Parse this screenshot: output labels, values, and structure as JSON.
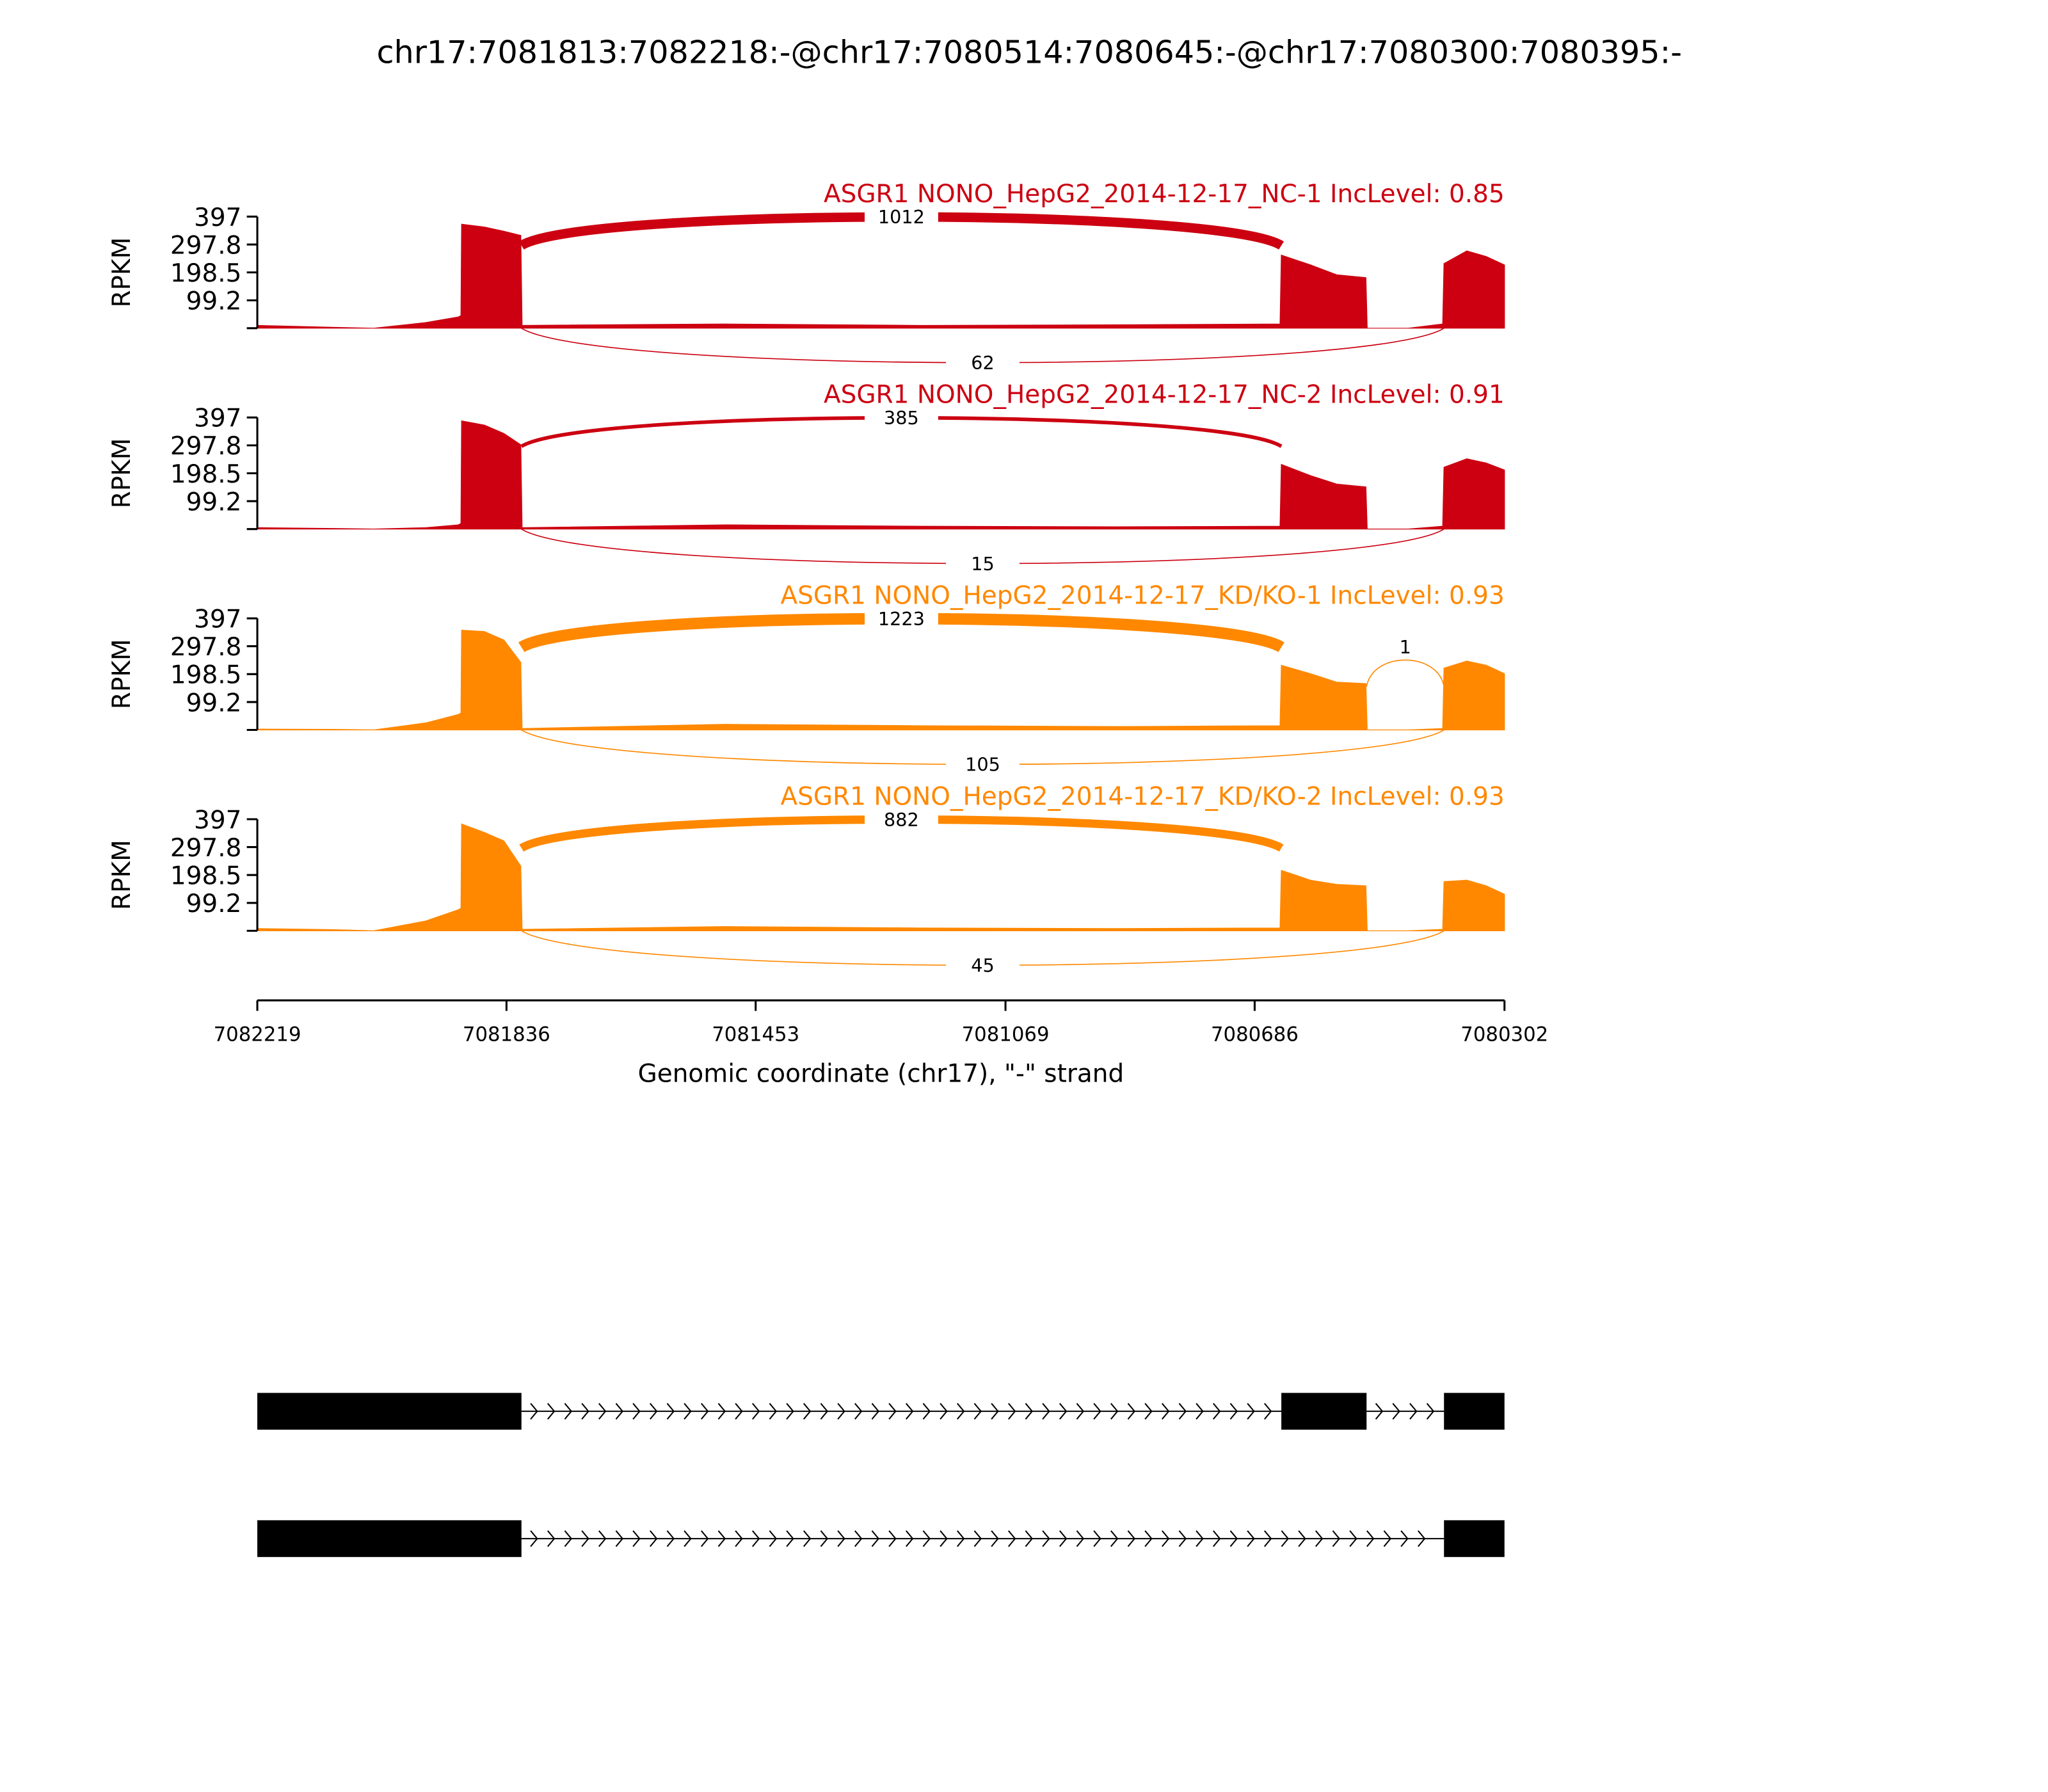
{
  "title": "chr17:7081813:7082218:-@chr17:7080514:7080645:-@chr17:7080300:7080395:-",
  "x_axis": {
    "label": "Genomic coordinate (chr17), \"-\" strand",
    "xlim": [
      7082219,
      7080302
    ],
    "xticks": [
      7082219,
      7081836,
      7081453,
      7081069,
      7080686,
      7080302
    ]
  },
  "coverage_x": [
    7082219,
    7082100,
    7082040,
    7081960,
    7081910,
    7081906,
    7081905,
    7081870,
    7081840,
    7081814,
    7081812,
    7081500,
    7081200,
    7080900,
    7080647,
    7080645,
    7080600,
    7080560,
    7080515,
    7080513,
    7080450,
    7080397,
    7080395,
    7080360,
    7080330,
    7080302
  ],
  "chart_data": [
    {
      "type": "sashimi",
      "label": "ASGR1 NONO_HepG2_2014-12-17_NC-1 IncLevel: 0.85",
      "color": "#cc0011",
      "ylabel": "RPKM",
      "ylim": [
        0,
        397
      ],
      "yticks": [
        99.2,
        198.5,
        297.8,
        397
      ],
      "values": [
        10,
        3,
        0,
        20,
        40,
        45,
        370,
        360,
        345,
        330,
        10,
        15,
        10,
        12,
        15,
        260,
        225,
        190,
        180,
        0,
        0,
        15,
        230,
        275,
        255,
        225
      ],
      "junctions": [
        {
          "start": 7081813,
          "end": 7080645,
          "count": 1012
        },
        {
          "start": 7081813,
          "end": 7080395,
          "count": 62
        }
      ]
    },
    {
      "type": "sashimi",
      "label": "ASGR1 NONO_HepG2_2014-12-17_NC-2 IncLevel: 0.91",
      "color": "#cc0011",
      "ylabel": "RPKM",
      "ylim": [
        0,
        397
      ],
      "yticks": [
        99.2,
        198.5,
        297.8,
        397
      ],
      "values": [
        5,
        2,
        0,
        5,
        15,
        20,
        385,
        370,
        340,
        300,
        5,
        15,
        10,
        8,
        10,
        230,
        190,
        160,
        150,
        0,
        0,
        10,
        220,
        250,
        235,
        210
      ],
      "junctions": [
        {
          "start": 7081813,
          "end": 7080645,
          "count": 385
        },
        {
          "start": 7081813,
          "end": 7080395,
          "count": 15
        }
      ]
    },
    {
      "type": "sashimi",
      "label": "ASGR1 NONO_HepG2_2014-12-17_KD/KO-1 IncLevel: 0.93",
      "color": "#ff8800",
      "ylabel": "RPKM",
      "ylim": [
        0,
        397
      ],
      "yticks": [
        99.2,
        198.5,
        297.8,
        397
      ],
      "values": [
        3,
        2,
        0,
        25,
        55,
        60,
        355,
        350,
        320,
        240,
        5,
        20,
        15,
        12,
        15,
        230,
        200,
        170,
        165,
        0,
        0,
        5,
        220,
        245,
        230,
        200
      ],
      "junctions": [
        {
          "start": 7081813,
          "end": 7080645,
          "count": 1223
        },
        {
          "start": 7081813,
          "end": 7080395,
          "count": 105
        },
        {
          "start": 7080514,
          "end": 7080395,
          "count": 1
        }
      ]
    },
    {
      "type": "sashimi",
      "label": "ASGR1 NONO_HepG2_2014-12-17_KD/KO-2 IncLevel: 0.93",
      "color": "#ff8800",
      "ylabel": "RPKM",
      "ylim": [
        0,
        397
      ],
      "yticks": [
        99.2,
        198.5,
        297.8,
        397
      ],
      "values": [
        8,
        4,
        0,
        35,
        75,
        80,
        380,
        350,
        320,
        230,
        5,
        15,
        10,
        8,
        10,
        215,
        180,
        165,
        160,
        0,
        0,
        5,
        175,
        180,
        160,
        130
      ],
      "junctions": [
        {
          "start": 7081813,
          "end": 7080645,
          "count": 882
        },
        {
          "start": 7081813,
          "end": 7080395,
          "count": 45
        }
      ]
    }
  ],
  "transcripts": [
    {
      "exons": [
        [
          7082219,
          7081813
        ],
        [
          7080645,
          7080514
        ],
        [
          7080395,
          7080302
        ]
      ]
    },
    {
      "exons": [
        [
          7082219,
          7081813
        ],
        [
          7080395,
          7080302
        ]
      ]
    }
  ]
}
